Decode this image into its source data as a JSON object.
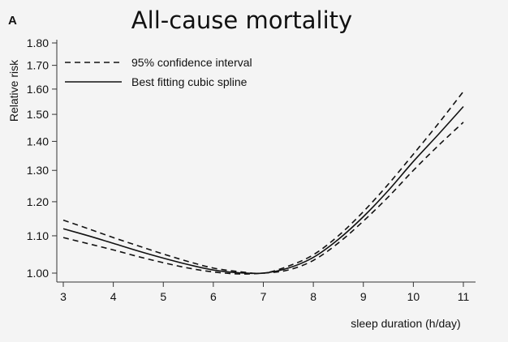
{
  "chart_data": {
    "type": "line",
    "panel_label": "A",
    "title": "All-cause mortality",
    "xlabel": "sleep duration (h/day)",
    "ylabel": "Relative risk",
    "y_scale": "log",
    "xlim": [
      3,
      11
    ],
    "ylim": [
      0.97,
      1.84
    ],
    "x_ticks": [
      3,
      4,
      5,
      6,
      7,
      8,
      9,
      10,
      11
    ],
    "y_ticks": [
      1.0,
      1.1,
      1.2,
      1.3,
      1.4,
      1.5,
      1.6,
      1.7,
      1.8
    ],
    "y_tick_labels": [
      "1.00",
      "1.10",
      "1.20",
      "1.30",
      "1.40",
      "1.50",
      "1.60",
      "1.70",
      "1.80"
    ],
    "legend_position": "top-left",
    "x": [
      3,
      3.5,
      4,
      4.5,
      5,
      5.5,
      6,
      6.5,
      7,
      7.5,
      8,
      8.5,
      9,
      9.5,
      10,
      10.5,
      11
    ],
    "series": [
      {
        "name": "95% confidence interval",
        "style": "dashed",
        "values": [
          1.145,
          1.12,
          1.095,
          1.072,
          1.05,
          1.03,
          1.013,
          1.004,
          1.0,
          1.018,
          1.048,
          1.1,
          1.17,
          1.255,
          1.355,
          1.465,
          1.59
        ]
      },
      {
        "name": "Best fitting cubic spline",
        "style": "solid",
        "values": [
          1.12,
          1.1,
          1.079,
          1.058,
          1.039,
          1.022,
          1.008,
          1.001,
          1.0,
          1.013,
          1.041,
          1.09,
          1.155,
          1.235,
          1.33,
          1.425,
          1.53
        ]
      },
      {
        "name": "",
        "style": "dashed",
        "values": [
          1.095,
          1.078,
          1.061,
          1.043,
          1.027,
          1.013,
          1.003,
          0.998,
          1.0,
          1.008,
          1.033,
          1.08,
          1.142,
          1.215,
          1.3,
          1.385,
          1.47
        ]
      }
    ]
  }
}
